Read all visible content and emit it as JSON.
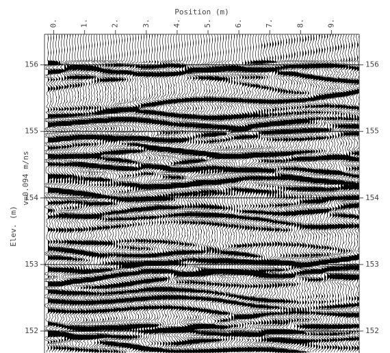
{
  "chart_data": {
    "type": "wiggle",
    "title": "Position (m)",
    "y_label": "Elev. (m)",
    "annotation": "v=0.094 m/ns",
    "xlim": [
      -0.3,
      9.9
    ],
    "xticks": [
      {
        "value": 0,
        "label": "0."
      },
      {
        "value": 1,
        "label": "1."
      },
      {
        "value": 2,
        "label": "2."
      },
      {
        "value": 3,
        "label": "3."
      },
      {
        "value": 4,
        "label": "4."
      },
      {
        "value": 5,
        "label": "5."
      },
      {
        "value": 6,
        "label": "6."
      },
      {
        "value": 7,
        "label": "7."
      },
      {
        "value": 8,
        "label": "8."
      },
      {
        "value": 9,
        "label": "9."
      }
    ],
    "ylim": [
      151.67,
      156.46
    ],
    "yticks": [
      152,
      153,
      154,
      155,
      156
    ],
    "grid": true,
    "right_axis": true,
    "color": "#000000"
  }
}
